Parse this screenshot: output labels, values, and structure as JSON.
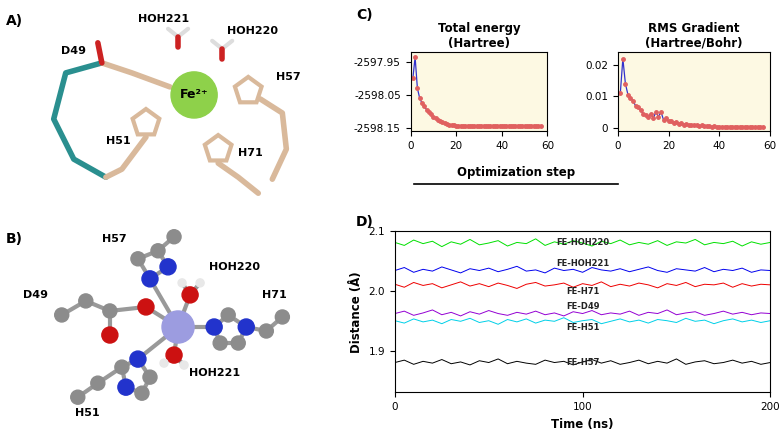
{
  "structures": [
    {
      "panel": "A)",
      "metal": "Fe²⁺",
      "labels": [
        "D49",
        "HOH221",
        "HOH220",
        "H57",
        "H51",
        "H71"
      ]
    },
    {
      "panel": "B)",
      "labels": [
        "D49",
        "H57",
        "HOH220",
        "H71",
        "HOH221",
        "H51"
      ]
    }
  ],
  "chart_panels": [
    {
      "panel": "C)",
      "xlabel": "Optimization step"
    },
    {
      "panel": "D)"
    }
  ],
  "chart_data": [
    {
      "type": "line",
      "title": "Total energy\n(Hartree)",
      "color": "#3333cc",
      "marker": "o",
      "x": [
        1,
        2,
        3,
        4,
        5,
        6,
        7,
        8,
        9,
        10,
        11,
        12,
        13,
        14,
        15,
        16,
        17,
        18,
        19,
        20,
        21,
        22,
        23,
        24,
        25,
        26,
        27,
        28,
        29,
        30,
        31,
        32,
        33,
        34,
        35,
        36,
        37,
        38,
        39,
        40,
        41,
        42,
        43,
        44,
        45,
        46,
        47,
        48,
        49,
        50,
        51,
        52,
        53,
        54,
        55,
        56,
        57
      ],
      "values": [
        -2598.0,
        -2597.935,
        -2598.03,
        -2598.06,
        -2598.075,
        -2598.085,
        -2598.095,
        -2598.103,
        -2598.11,
        -2598.117,
        -2598.122,
        -2598.127,
        -2598.131,
        -2598.134,
        -2598.137,
        -2598.139,
        -2598.141,
        -2598.142,
        -2598.143,
        -2598.144,
        -2598.144,
        -2598.145,
        -2598.145,
        -2598.145,
        -2598.146,
        -2598.145,
        -2598.146,
        -2598.146,
        -2598.146,
        -2598.146,
        -2598.146,
        -2598.146,
        -2598.146,
        -2598.146,
        -2598.146,
        -2598.146,
        -2598.146,
        -2598.146,
        -2598.146,
        -2598.146,
        -2598.146,
        -2598.146,
        -2598.146,
        -2598.146,
        -2598.146,
        -2598.146,
        -2598.146,
        -2598.146,
        -2598.146,
        -2598.146,
        -2598.146,
        -2598.146,
        -2598.146,
        -2598.146,
        -2598.146,
        -2598.146,
        -2598.146
      ],
      "xlim": [
        0,
        60
      ],
      "xticks": [
        0,
        20,
        40,
        60
      ],
      "ylim": [
        -2598.16,
        -2597.92
      ],
      "yticks": [
        -2598.15,
        -2598.05,
        -2597.95
      ]
    },
    {
      "type": "line",
      "title": "RMS Gradient\n(Hartree/Bohr)",
      "color": "#3333cc",
      "marker": "o",
      "x": [
        1,
        2,
        3,
        4,
        5,
        6,
        7,
        8,
        9,
        10,
        11,
        12,
        13,
        14,
        15,
        16,
        17,
        18,
        19,
        20,
        21,
        22,
        23,
        24,
        25,
        26,
        27,
        28,
        29,
        30,
        31,
        32,
        33,
        34,
        35,
        36,
        37,
        38,
        39,
        40,
        41,
        42,
        43,
        44,
        45,
        46,
        47,
        48,
        49,
        50,
        51,
        52,
        53,
        54,
        55,
        56,
        57
      ],
      "values": [
        0.011,
        0.022,
        0.014,
        0.0105,
        0.0095,
        0.0085,
        0.007,
        0.0065,
        0.0055,
        0.0045,
        0.004,
        0.0035,
        0.0045,
        0.003,
        0.005,
        0.0035,
        0.005,
        0.0025,
        0.003,
        0.002,
        0.0022,
        0.0015,
        0.0018,
        0.0012,
        0.0014,
        0.001,
        0.0012,
        0.0008,
        0.001,
        0.0007,
        0.0008,
        0.0005,
        0.0007,
        0.0004,
        0.0005,
        0.0004,
        0.0003,
        0.0004,
        0.0003,
        0.0002,
        0.0002,
        0.0003,
        0.0002,
        0.0002,
        0.0001,
        0.0002,
        0.0001,
        0.0001,
        0.0001,
        0.0001,
        0.0001,
        0.0001,
        0.0001,
        0.0001,
        0.0001,
        0.0001,
        0.0001
      ],
      "xlim": [
        0,
        60
      ],
      "xticks": [
        0,
        20,
        40,
        60
      ],
      "ylim": [
        -0.001,
        0.024
      ],
      "yticks": [
        0,
        0.01,
        0.02
      ]
    },
    {
      "type": "line",
      "xlabel": "Time (ns)",
      "ylabel": "Distance (Å)",
      "x": [
        0,
        5,
        10,
        15,
        20,
        25,
        30,
        35,
        40,
        45,
        50,
        55,
        60,
        65,
        70,
        75,
        80,
        85,
        90,
        95,
        100,
        105,
        110,
        115,
        120,
        125,
        130,
        135,
        140,
        145,
        150,
        155,
        160,
        165,
        170,
        175,
        180,
        185,
        190,
        195,
        200
      ],
      "series": [
        {
          "name": "FE-HOH220",
          "color": "#00e000",
          "values": [
            2.081,
            2.076,
            2.085,
            2.079,
            2.083,
            2.074,
            2.082,
            2.078,
            2.086,
            2.077,
            2.08,
            2.084,
            2.075,
            2.081,
            2.079,
            2.087,
            2.076,
            2.082,
            2.078,
            2.084,
            2.08,
            2.075,
            2.083,
            2.079,
            2.085,
            2.077,
            2.081,
            2.078,
            2.084,
            2.076,
            2.082,
            2.08,
            2.086,
            2.077,
            2.081,
            2.079,
            2.083,
            2.075,
            2.082,
            2.078,
            2.081
          ]
        },
        {
          "name": "FE-HOH221",
          "color": "#0000ee",
          "values": [
            2.034,
            2.039,
            2.031,
            2.036,
            2.033,
            2.04,
            2.035,
            2.03,
            2.037,
            2.034,
            2.038,
            2.032,
            2.036,
            2.041,
            2.033,
            2.035,
            2.03,
            2.038,
            2.034,
            2.036,
            2.031,
            2.039,
            2.035,
            2.033,
            2.037,
            2.032,
            2.036,
            2.04,
            2.034,
            2.031,
            2.037,
            2.035,
            2.033,
            2.039,
            2.032,
            2.036,
            2.034,
            2.038,
            2.031,
            2.035,
            2.034
          ]
        },
        {
          "name": "FE-H71",
          "color": "#ee0000",
          "values": [
            2.011,
            2.006,
            2.014,
            2.009,
            2.012,
            2.005,
            2.01,
            2.015,
            2.008,
            2.012,
            2.007,
            2.013,
            2.009,
            2.004,
            2.011,
            2.014,
            2.008,
            2.01,
            2.013,
            2.006,
            2.012,
            2.009,
            2.015,
            2.007,
            2.011,
            2.008,
            2.013,
            2.01,
            2.005,
            2.012,
            2.009,
            2.014,
            2.007,
            2.011,
            2.01,
            2.013,
            2.006,
            2.012,
            2.008,
            2.011,
            2.01
          ]
        },
        {
          "name": "FE-D49",
          "color": "#9400d3",
          "values": [
            1.962,
            1.966,
            1.959,
            1.963,
            1.968,
            1.96,
            1.964,
            1.958,
            1.965,
            1.961,
            1.967,
            1.962,
            1.959,
            1.964,
            1.961,
            1.966,
            1.96,
            1.963,
            1.958,
            1.965,
            1.962,
            1.967,
            1.96,
            1.963,
            1.961,
            1.966,
            1.959,
            1.964,
            1.962,
            1.968,
            1.96,
            1.963,
            1.965,
            1.959,
            1.962,
            1.966,
            1.961,
            1.964,
            1.96,
            1.963,
            1.962
          ]
        },
        {
          "name": "FE-H51",
          "color": "#00d0e8",
          "values": [
            1.95,
            1.946,
            1.953,
            1.948,
            1.951,
            1.945,
            1.952,
            1.949,
            1.954,
            1.947,
            1.95,
            1.944,
            1.952,
            1.948,
            1.953,
            1.946,
            1.951,
            1.949,
            1.955,
            1.947,
            1.95,
            1.952,
            1.945,
            1.949,
            1.953,
            1.948,
            1.951,
            1.946,
            1.952,
            1.95,
            1.947,
            1.954,
            1.949,
            1.951,
            1.945,
            1.95,
            1.953,
            1.948,
            1.951,
            1.947,
            1.95
          ]
        },
        {
          "name": "FE-H57",
          "color": "#000000",
          "values": [
            1.88,
            1.884,
            1.877,
            1.882,
            1.879,
            1.885,
            1.878,
            1.881,
            1.876,
            1.883,
            1.88,
            1.886,
            1.878,
            1.882,
            1.879,
            1.877,
            1.884,
            1.88,
            1.882,
            1.876,
            1.881,
            1.885,
            1.879,
            1.883,
            1.877,
            1.88,
            1.884,
            1.878,
            1.882,
            1.879,
            1.886,
            1.877,
            1.881,
            1.883,
            1.878,
            1.88,
            1.884,
            1.879,
            1.882,
            1.877,
            1.88
          ]
        }
      ],
      "xlim": [
        0,
        200
      ],
      "xticks": [
        0,
        100,
        200
      ],
      "ylim": [
        1.83,
        2.1
      ],
      "yticks": [
        1.9,
        2.0,
        2.1
      ]
    }
  ]
}
